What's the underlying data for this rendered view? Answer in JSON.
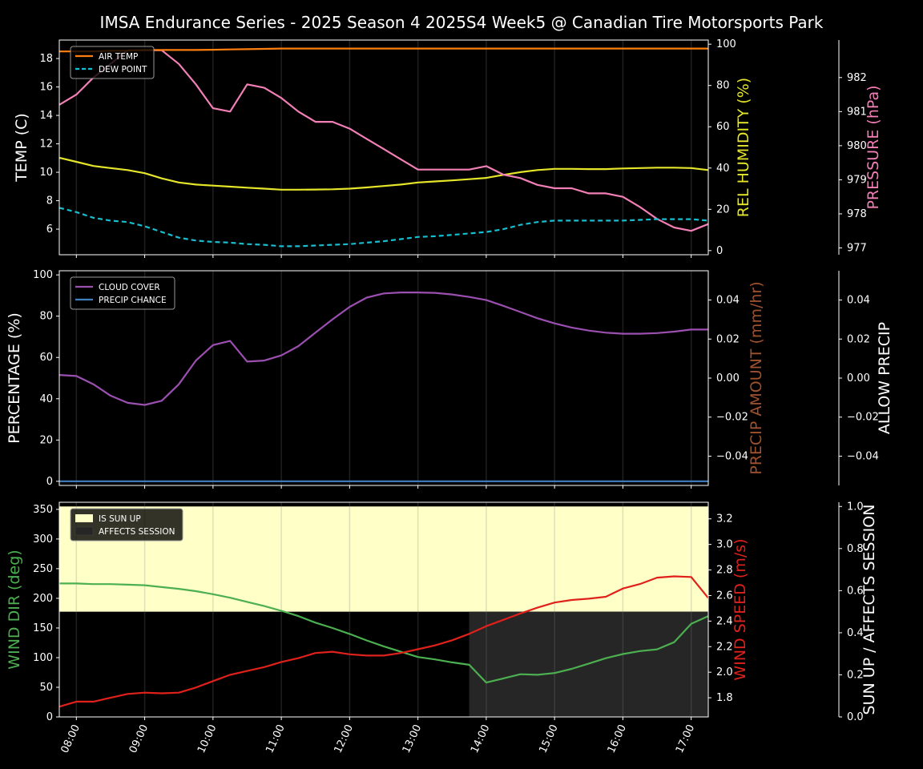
{
  "title": "IMSA Endurance Series - 2025 Season 4 2025S4 Week5 @ Canadian Tire Motorsports Park",
  "colors": {
    "air_temp": "#ff7f0e",
    "dew_point": "#17becf",
    "humidity": "#e5e52a",
    "pressure": "#f27fb6",
    "cloud": "#9b4fb0",
    "precip_chance": "#3f7fc0",
    "precip_amount_label": "#a0522d",
    "wind_dir": "#4caf50",
    "wind_speed": "#e0211b",
    "sun_up": "#ffffc8",
    "affects": "#262626"
  },
  "x_ticks": [
    "08:00",
    "09:00",
    "10:00",
    "11:00",
    "12:00",
    "13:00",
    "14:00",
    "15:00",
    "16:00",
    "17:00"
  ],
  "chart_data": [
    {
      "type": "line",
      "panel": "temperature",
      "x_range": [
        "07:45",
        "17:15"
      ],
      "legend": [
        "AIR TEMP",
        "DEW POINT"
      ],
      "legend_position": "top-left",
      "axes": {
        "left": {
          "label": "TEMP (C)",
          "ylim": [
            4.2,
            19.3
          ],
          "ticks": [
            "6",
            "8",
            "10",
            "12",
            "14",
            "16",
            "18"
          ]
        },
        "right1": {
          "label": "REL HUMIDITY (%)",
          "ylim": [
            -2,
            102
          ],
          "ticks": [
            "0",
            "20",
            "40",
            "60",
            "80",
            "100"
          ]
        },
        "right2": {
          "label": "PRESSURE (hPa)",
          "ylim": [
            976.8,
            983.1
          ],
          "ticks": [
            "977",
            "978",
            "979",
            "980",
            "981",
            "982"
          ]
        }
      },
      "x": [
        "07:45",
        "08:00",
        "08:15",
        "08:30",
        "08:45",
        "09:00",
        "09:15",
        "09:30",
        "09:45",
        "10:00",
        "10:15",
        "10:30",
        "10:45",
        "11:00",
        "11:15",
        "11:30",
        "11:45",
        "12:00",
        "12:15",
        "12:30",
        "12:45",
        "13:00",
        "13:15",
        "13:30",
        "13:45",
        "14:00",
        "14:15",
        "14:30",
        "14:45",
        "15:00",
        "15:15",
        "15:30",
        "15:45",
        "16:00",
        "16:15",
        "16:30",
        "16:45",
        "17:00",
        "17:15"
      ],
      "series": [
        {
          "name": "AIR TEMP",
          "axis": "left",
          "values": [
            18.5,
            18.5,
            18.5,
            18.55,
            18.55,
            18.6,
            18.6,
            18.6,
            18.6,
            18.62,
            18.64,
            18.66,
            18.68,
            18.7,
            18.7,
            18.7,
            18.7,
            18.7,
            18.7,
            18.7,
            18.7,
            18.7,
            18.7,
            18.7,
            18.7,
            18.7,
            18.7,
            18.7,
            18.7,
            18.7,
            18.7,
            18.7,
            18.7,
            18.7,
            18.7,
            18.7,
            18.7,
            18.7,
            18.7
          ]
        },
        {
          "name": "DEW POINT",
          "axis": "left",
          "values": [
            7.5,
            7.2,
            6.8,
            6.6,
            6.5,
            6.2,
            5.8,
            5.4,
            5.2,
            5.1,
            5.05,
            4.95,
            4.9,
            4.8,
            4.8,
            4.85,
            4.9,
            4.95,
            5.05,
            5.15,
            5.3,
            5.45,
            5.5,
            5.6,
            5.7,
            5.8,
            6.0,
            6.3,
            6.5,
            6.6,
            6.6,
            6.6,
            6.6,
            6.6,
            6.65,
            6.7,
            6.7,
            6.7,
            6.6
          ]
        },
        {
          "name": "REL HUMIDITY",
          "axis": "right1",
          "values": [
            45,
            43,
            41,
            40,
            39,
            37.5,
            35,
            33,
            32,
            31.5,
            31,
            30.5,
            30,
            29.5,
            29.5,
            29.6,
            29.7,
            30,
            30.6,
            31.3,
            32,
            33,
            33.5,
            34,
            34.6,
            35.2,
            36.7,
            38,
            39,
            39.6,
            39.6,
            39.5,
            39.5,
            39.8,
            40,
            40.2,
            40.2,
            40,
            39
          ]
        },
        {
          "name": "PRESSURE",
          "axis": "right2",
          "values": [
            981.2,
            981.5,
            982.0,
            982.4,
            982.8,
            982.8,
            982.8,
            982.4,
            981.8,
            981.1,
            981,
            981.8,
            981.7,
            981.4,
            981,
            980.7,
            980.7,
            980.5,
            980.2,
            979.9,
            979.6,
            979.3,
            979.3,
            979.3,
            979.3,
            979.4,
            979.15,
            979.05,
            978.85,
            978.75,
            978.75,
            978.6,
            978.6,
            978.5,
            978.2,
            977.85,
            977.6,
            977.5,
            977.7
          ]
        }
      ]
    },
    {
      "type": "line",
      "panel": "clouds_precip",
      "legend": [
        "CLOUD COVER",
        "PRECIP CHANCE"
      ],
      "legend_position": "top-left",
      "axes": {
        "left": {
          "label": "PERCENTAGE (%)",
          "ylim": [
            -2,
            102
          ],
          "ticks": [
            "0",
            "20",
            "40",
            "60",
            "80",
            "100"
          ]
        },
        "right1": {
          "label": "PRECIP AMOUNT (mm/hr)",
          "ylim": [
            -0.055,
            0.055
          ],
          "ticks": [
            "−0.04",
            "−0.02",
            "0.00",
            "0.02",
            "0.04"
          ]
        },
        "right2": {
          "label": "ALLOW PRECIP",
          "ylim": [
            -0.055,
            0.055
          ],
          "ticks": [
            "−0.04",
            "−0.02",
            "0.00",
            "0.02",
            "0.04"
          ]
        }
      },
      "x": [
        "07:45",
        "08:00",
        "08:15",
        "08:30",
        "08:45",
        "09:00",
        "09:15",
        "09:30",
        "09:45",
        "10:00",
        "10:15",
        "10:30",
        "10:45",
        "11:00",
        "11:15",
        "11:30",
        "11:45",
        "12:00",
        "12:15",
        "12:30",
        "12:45",
        "13:00",
        "13:15",
        "13:30",
        "13:45",
        "14:00",
        "14:15",
        "14:30",
        "14:45",
        "15:00",
        "15:15",
        "15:30",
        "15:45",
        "16:00",
        "16:15",
        "16:30",
        "16:45",
        "17:00",
        "17:15"
      ],
      "series": [
        {
          "name": "CLOUD COVER",
          "values": [
            51.5,
            51,
            47,
            41.5,
            38,
            37,
            39,
            47,
            58.5,
            66,
            68,
            58,
            58.5,
            61,
            65.5,
            72,
            78.5,
            84.5,
            89,
            91,
            91.5,
            91.5,
            91.3,
            90.5,
            89.3,
            87.8,
            85,
            82,
            79,
            76.5,
            74.5,
            73,
            72,
            71.5,
            71.5,
            71.8,
            72.5,
            73.5,
            73.5
          ]
        },
        {
          "name": "PRECIP CHANCE",
          "values": [
            0,
            0,
            0,
            0,
            0,
            0,
            0,
            0,
            0,
            0,
            0,
            0,
            0,
            0,
            0,
            0,
            0,
            0,
            0,
            0,
            0,
            0,
            0,
            0,
            0,
            0,
            0,
            0,
            0,
            0,
            0,
            0,
            0,
            0,
            0,
            0,
            0,
            0,
            0
          ]
        }
      ]
    },
    {
      "type": "line",
      "panel": "wind_sun",
      "legend": [
        "IS SUN UP",
        "AFFECTS SESSION"
      ],
      "legend_position": "top-left",
      "axes": {
        "left": {
          "label": "WIND DIR (deg)",
          "ylim": [
            0,
            362
          ],
          "ticks": [
            "0",
            "50",
            "100",
            "150",
            "200",
            "250",
            "300",
            "350"
          ]
        },
        "right1": {
          "label": "WIND SPEED (m/s)",
          "ylim": [
            1.65,
            3.33
          ],
          "ticks": [
            "1.8",
            "2.0",
            "2.2",
            "2.4",
            "2.6",
            "2.8",
            "3.0",
            "3.2"
          ]
        },
        "right2": {
          "label": "SUN UP / AFFECTS SESSION",
          "ylim": [
            0,
            1.02
          ],
          "ticks": [
            "0.0",
            "0.2",
            "0.4",
            "0.6",
            "0.8",
            "1.0"
          ]
        }
      },
      "sun_up": {
        "from": "07:45",
        "to": "17:15",
        "value": 1
      },
      "affects_session": {
        "from": "13:45",
        "to": "17:15",
        "value": 0.5
      },
      "x": [
        "07:45",
        "08:00",
        "08:15",
        "08:30",
        "08:45",
        "09:00",
        "09:15",
        "09:30",
        "09:45",
        "10:00",
        "10:15",
        "10:30",
        "10:45",
        "11:00",
        "11:15",
        "11:30",
        "11:45",
        "12:00",
        "12:15",
        "12:30",
        "12:45",
        "13:00",
        "13:15",
        "13:30",
        "13:45",
        "14:00",
        "14:15",
        "14:30",
        "14:45",
        "15:00",
        "15:15",
        "15:30",
        "15:45",
        "16:00",
        "16:15",
        "16:30",
        "16:45",
        "17:00",
        "17:15"
      ],
      "series": [
        {
          "name": "WIND DIR",
          "axis": "left",
          "values": [
            225,
            225,
            224,
            224,
            223,
            222,
            219,
            216,
            212,
            207,
            201,
            194,
            187,
            179,
            170,
            159,
            150,
            140,
            129,
            119,
            110,
            101,
            97,
            92,
            88,
            58,
            65,
            72,
            71,
            74,
            81,
            90,
            99,
            106,
            111,
            114,
            126,
            157,
            170
          ]
        },
        {
          "name": "WIND SPEED",
          "axis": "right1",
          "values": [
            1.73,
            1.77,
            1.77,
            1.8,
            1.83,
            1.84,
            1.835,
            1.84,
            1.88,
            1.93,
            1.98,
            2.01,
            2.04,
            2.08,
            2.11,
            2.15,
            2.16,
            2.14,
            2.13,
            2.13,
            2.15,
            2.18,
            2.21,
            2.25,
            2.3,
            2.36,
            2.41,
            2.46,
            2.505,
            2.545,
            2.565,
            2.575,
            2.59,
            2.655,
            2.69,
            2.74,
            2.75,
            2.745,
            2.58
          ]
        }
      ]
    }
  ]
}
